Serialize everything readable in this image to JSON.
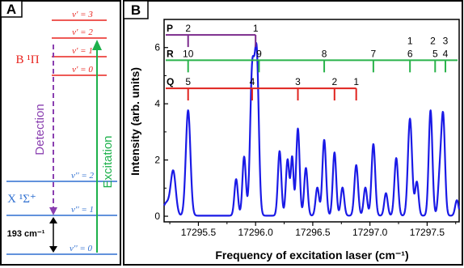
{
  "panel_a": {
    "label": "A",
    "upper_state": {
      "label": "B ¹Π",
      "color": "#e8231e",
      "levels": [
        {
          "label": "v' = 3"
        },
        {
          "label": "v' = 2"
        },
        {
          "label": "v' = 1"
        },
        {
          "label": "v' = 0"
        }
      ]
    },
    "lower_state": {
      "label": "X ¹Σ⁺",
      "color": "#2f6fd0",
      "levels": [
        {
          "label": "v'' = 2"
        },
        {
          "label": "v'' = 1"
        },
        {
          "label": "v'' = 0"
        }
      ]
    },
    "detection_label": "Detection",
    "detection_color": "#8a3fb0",
    "excitation_label": "Excitation",
    "excitation_color": "#1db14b",
    "energy_gap_label": "193 cm⁻¹"
  },
  "panel_b": {
    "label": "B",
    "chart_data": {
      "type": "line",
      "xlabel": "Frequency of excitation laser (cm⁻¹)",
      "ylabel": "Intensity (arb. units)",
      "xlim": [
        17295.2,
        17297.78
      ],
      "ylim": [
        -0.2,
        7.0
      ],
      "xticks": [
        17295.5,
        17296.0,
        17296.5,
        17297.0,
        17297.5
      ],
      "xtick_labels": [
        "17295.5",
        "17296.0",
        "17296.5",
        "17297.0",
        "17297.5"
      ],
      "yticks": [
        0,
        2,
        4,
        6
      ],
      "ytick_labels": [
        "0",
        "2",
        "4",
        "6"
      ],
      "line_color": "#1a1ae6",
      "peaks": [
        {
          "x": 17295.22,
          "h": 0.45,
          "w": 0.03
        },
        {
          "x": 17295.28,
          "h": 1.55,
          "w": 0.022
        },
        {
          "x": 17295.41,
          "h": 3.75,
          "w": 0.02
        },
        {
          "x": 17295.83,
          "h": 1.3,
          "w": 0.015
        },
        {
          "x": 17295.9,
          "h": 2.1,
          "w": 0.015
        },
        {
          "x": 17295.97,
          "h": 5.0,
          "w": 0.018
        },
        {
          "x": 17296.01,
          "h": 5.6,
          "w": 0.018
        },
        {
          "x": 17296.21,
          "h": 2.3,
          "w": 0.015
        },
        {
          "x": 17296.28,
          "h": 2.0,
          "w": 0.015
        },
        {
          "x": 17296.32,
          "h": 2.05,
          "w": 0.012
        },
        {
          "x": 17296.37,
          "h": 3.1,
          "w": 0.015
        },
        {
          "x": 17296.44,
          "h": 1.7,
          "w": 0.015
        },
        {
          "x": 17296.54,
          "h": 1.0,
          "w": 0.015
        },
        {
          "x": 17296.6,
          "h": 2.7,
          "w": 0.016
        },
        {
          "x": 17296.69,
          "h": 2.25,
          "w": 0.015
        },
        {
          "x": 17296.76,
          "h": 1.0,
          "w": 0.015
        },
        {
          "x": 17296.88,
          "h": 1.8,
          "w": 0.016
        },
        {
          "x": 17296.96,
          "h": 1.0,
          "w": 0.015
        },
        {
          "x": 17297.03,
          "h": 2.55,
          "w": 0.016
        },
        {
          "x": 17297.14,
          "h": 0.8,
          "w": 0.015
        },
        {
          "x": 17297.23,
          "h": 2.05,
          "w": 0.016
        },
        {
          "x": 17297.35,
          "h": 3.45,
          "w": 0.018
        },
        {
          "x": 17297.41,
          "h": 1.2,
          "w": 0.015
        },
        {
          "x": 17297.53,
          "h": 3.75,
          "w": 0.016
        },
        {
          "x": 17297.61,
          "h": 1.3,
          "w": 0.015
        },
        {
          "x": 17297.64,
          "h": 3.5,
          "w": 0.016
        },
        {
          "x": 17297.76,
          "h": 0.55,
          "w": 0.015
        }
      ],
      "baseline": 0.02,
      "branches": [
        {
          "name": "P",
          "color": "#7b2a8c",
          "y": 6.45,
          "ticks": [
            {
              "x": 17295.41,
              "label": "2"
            },
            {
              "x": 17296.0,
              "label": "1"
            }
          ]
        },
        {
          "name": "R",
          "color": "#29b34a",
          "y": 5.55,
          "ticks": [
            {
              "x": 17295.41,
              "label": "10"
            },
            {
              "x": 17296.03,
              "label": "9"
            },
            {
              "x": 17296.6,
              "label": "8"
            },
            {
              "x": 17297.03,
              "label": "7"
            },
            {
              "x": 17297.35,
              "label": "6"
            },
            {
              "x": 17297.57,
              "label": "5"
            },
            {
              "x": 17297.66,
              "label": "4"
            }
          ],
          "upper_labels": [
            {
              "x": 17297.35,
              "label": "1"
            },
            {
              "x": 17297.55,
              "label": "2"
            },
            {
              "x": 17297.66,
              "label": "3"
            }
          ]
        },
        {
          "name": "Q",
          "color": "#e0231e",
          "y": 4.55,
          "ticks": [
            {
              "x": 17295.41,
              "label": "5"
            },
            {
              "x": 17295.97,
              "label": "4"
            },
            {
              "x": 17296.37,
              "label": "3"
            },
            {
              "x": 17296.69,
              "label": "2"
            },
            {
              "x": 17296.88,
              "label": "1"
            }
          ]
        }
      ]
    }
  }
}
